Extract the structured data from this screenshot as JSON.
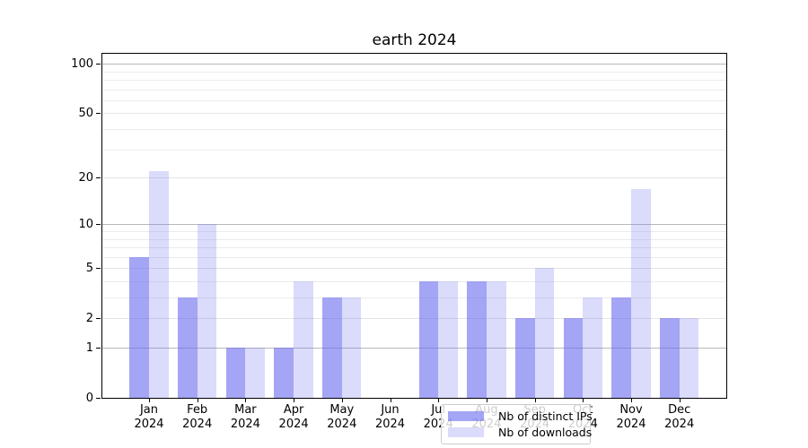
{
  "title": "earth 2024",
  "colors": {
    "ips_fill": "rgba(105,105,238,0.60)",
    "downloads_fill": "rgba(105,105,238,0.24)",
    "major_gridline": "#b9b9b9",
    "minor_gridline": "#ebebeb",
    "axis_line": "#000000"
  },
  "legend": {
    "items": [
      {
        "label": "Nb of distinct IPs",
        "series": "ips"
      },
      {
        "label": "Nb of downloads",
        "series": "downloads"
      }
    ]
  },
  "chart_data": {
    "type": "bar",
    "title": "earth 2024",
    "categories": [
      "Jan 2024",
      "Feb 2024",
      "Mar 2024",
      "Apr 2024",
      "May 2024",
      "Jun 2024",
      "Jul 2024",
      "Aug 2024",
      "Sep 2024",
      "Oct 2024",
      "Nov 2024",
      "Dec 2024"
    ],
    "x_tick_months": [
      "Jan",
      "Feb",
      "Mar",
      "Apr",
      "May",
      "Jun",
      "Jul",
      "Aug",
      "Sep",
      "Oct",
      "Nov",
      "Dec"
    ],
    "x_tick_year": "2024",
    "series": [
      {
        "name": "Nb of distinct IPs",
        "values": [
          6,
          3,
          1,
          1,
          3,
          0,
          4,
          4,
          2,
          2,
          3,
          2
        ]
      },
      {
        "name": "Nb of downloads",
        "values": [
          22,
          10,
          1,
          4,
          3,
          0,
          4,
          4,
          5,
          3,
          17,
          2
        ]
      }
    ],
    "yscale": "log1p",
    "ylabel": "",
    "xlabel": "",
    "y_ticks": [
      0,
      1,
      2,
      5,
      10,
      20,
      50,
      100
    ],
    "y_major_gridlines": [
      1,
      10,
      100
    ],
    "y_minor_gridlines": [
      2,
      3,
      4,
      5,
      6,
      7,
      8,
      9,
      20,
      30,
      40,
      50,
      60,
      70,
      80,
      90
    ],
    "ylim": [
      0,
      116
    ],
    "grid": true,
    "legend_position": "lower center"
  }
}
